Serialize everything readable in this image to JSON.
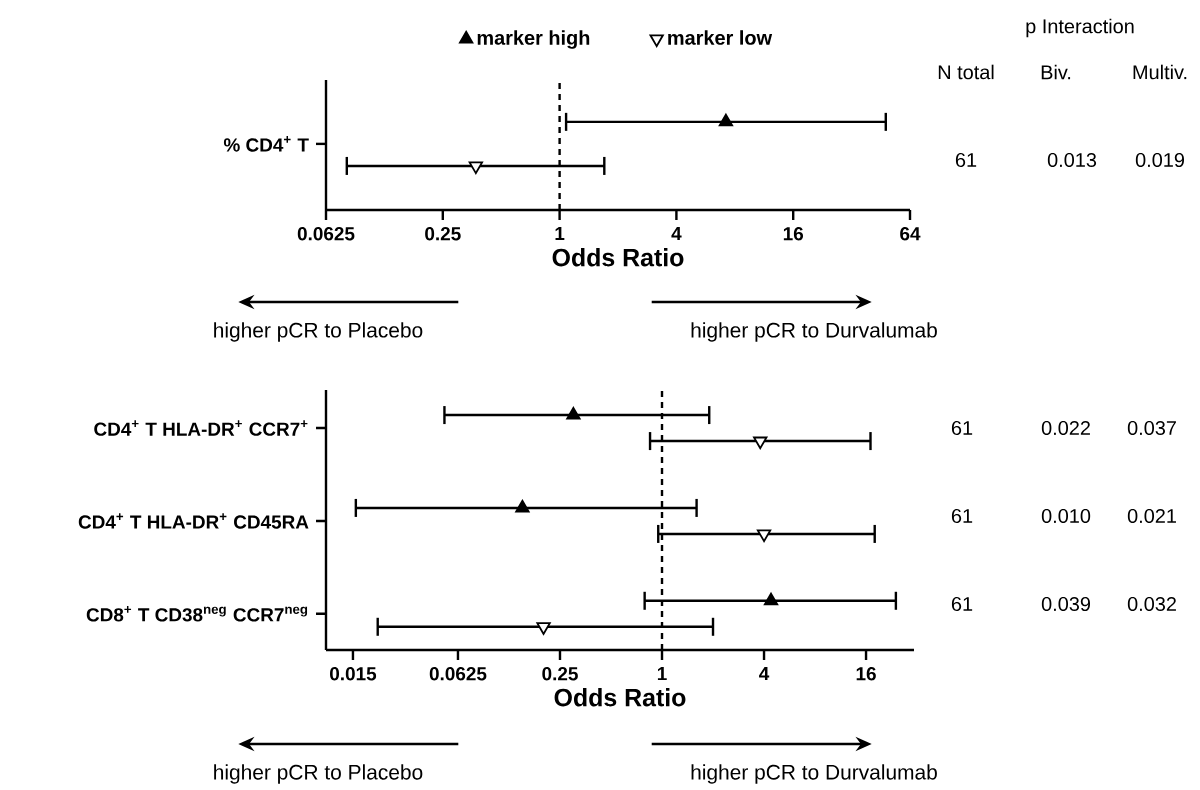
{
  "chart_data": [
    {
      "type": "scatter",
      "orientation": "horizontal",
      "categories": [
        "% CD4$^{+}$ T"
      ],
      "series": [
        {
          "name": "marker high",
          "color": "#000000",
          "marker": "triangle",
          "values": [
            7.2
          ],
          "errors": [
            [
              1.08,
              48
            ]
          ]
        },
        {
          "name": "marker low",
          "color": "#ffffff",
          "marker": "triangle-down",
          "values": [
            0.37
          ],
          "errors": [
            [
              0.08,
              1.7
            ]
          ]
        }
      ],
      "xlabel": "Odds Ratio",
      "log": "x",
      "xlim": [
        0.0625,
        64
      ],
      "xticks": [
        0.0625,
        0.25,
        1,
        4,
        16,
        64
      ],
      "ref_lines": [
        {
          "axis": "x",
          "value": 1,
          "line_style": "dashed"
        }
      ],
      "legend": "top",
      "annotations": [
        "p Interaction",
        "N total",
        "Biv.",
        "Multiv.",
        "61",
        "0.013",
        "0.019",
        "higher pCR to Placebo",
        "higher pCR to Durvalumab"
      ]
    },
    {
      "type": "scatter",
      "orientation": "horizontal",
      "categories": [
        "CD4$^{+}$ T HLA-DR$^{+}$ CCR7$^{+}$",
        "CD4$^{+}$ T HLA-DR$^{+}$ CD45RA",
        "CD8$^{+}$ T CD38$^{neg}$ CCR7$^{neg}$"
      ],
      "series": [
        {
          "color": "#000000",
          "marker": "triangle",
          "values": [
            0.3,
            0.15,
            4.4
          ],
          "errors": [
            [
              0.052,
              1.9
            ],
            [
              0.0156,
              1.6
            ],
            [
              0.79,
              24
            ]
          ]
        },
        {
          "color": "#ffffff",
          "marker": "triangle-down",
          "values": [
            3.8,
            4.0,
            0.2
          ],
          "errors": [
            [
              0.85,
              17
            ],
            [
              0.95,
              18
            ],
            [
              0.021,
              2.0
            ]
          ]
        }
      ],
      "xlabel": "Odds Ratio",
      "log": "x",
      "xlim": [
        0.0104,
        30.7
      ],
      "xticks": [
        0.015,
        0.0625,
        0.25,
        1,
        4,
        16
      ],
      "ref_lines": [
        {
          "axis": "x",
          "value": 1,
          "line_style": "dashed"
        }
      ],
      "annotations": [
        "61",
        "0.022",
        "0.037",
        "61",
        "0.010",
        "0.021",
        "61",
        "0.039",
        "0.032",
        "higher pCR to Placebo",
        "higher pCR to Durvalumab"
      ]
    }
  ]
}
